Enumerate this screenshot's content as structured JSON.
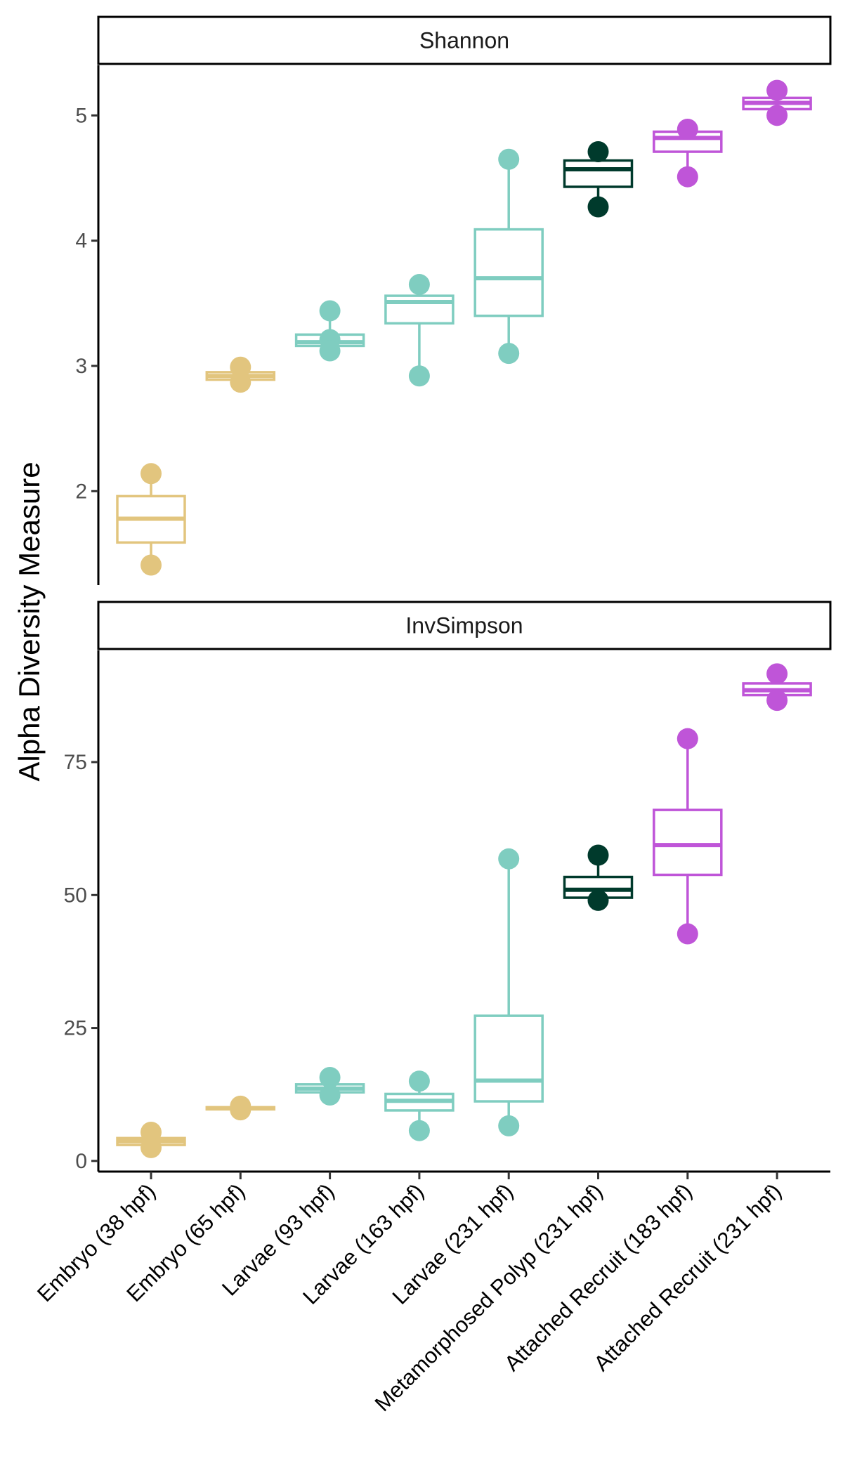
{
  "chart_data": {
    "type": "boxplot",
    "ylabel": "Alpha Diversity Measure",
    "xlabel": "",
    "categories": [
      "Embryo (38 hpf)",
      "Embryo (65 hpf)",
      "Larvae (93 hpf)",
      "Larvae (163 hpf)",
      "Larvae (231 hpf)",
      "Metamorphosed Polyp (231 hpf)",
      "Attached Recruit (183 hpf)",
      "Attached Recruit (231 hpf)"
    ],
    "category_colors": [
      "#E2C57E",
      "#E2C57E",
      "#7FCDC0",
      "#7FCDC0",
      "#7FCDC0",
      "#003A2C",
      "#BF55D8",
      "#BF55D8"
    ],
    "panels": [
      {
        "title": "Shannon",
        "ylim": [
          1.25,
          5.4
        ],
        "ticks": [
          2,
          3,
          4,
          5
        ],
        "tick_labels": [
          "2",
          "3",
          "4",
          "5"
        ],
        "boxes": [
          {
            "min": 1.41,
            "q1": 1.59,
            "median": 1.78,
            "q3": 1.96,
            "max": 2.14,
            "points": [
              2.14,
              1.41
            ]
          },
          {
            "min": 2.87,
            "q1": 2.89,
            "median": 2.92,
            "q3": 2.95,
            "max": 2.99,
            "points": [
              2.99,
              2.87
            ]
          },
          {
            "min": 3.12,
            "q1": 3.16,
            "median": 3.19,
            "q3": 3.25,
            "max": 3.44,
            "points": [
              3.44,
              3.21,
              3.12
            ]
          },
          {
            "min": 2.92,
            "q1": 3.34,
            "median": 3.51,
            "q3": 3.56,
            "max": 3.65,
            "points": [
              3.65,
              2.92
            ]
          },
          {
            "min": 3.1,
            "q1": 3.4,
            "median": 3.7,
            "q3": 4.09,
            "max": 4.65,
            "points": [
              4.65,
              3.1
            ]
          },
          {
            "min": 4.27,
            "q1": 4.43,
            "median": 4.57,
            "q3": 4.64,
            "max": 4.71,
            "points": [
              4.71,
              4.27
            ]
          },
          {
            "min": 4.51,
            "q1": 4.71,
            "median": 4.82,
            "q3": 4.87,
            "max": 4.89,
            "points": [
              4.89,
              4.51
            ]
          },
          {
            "min": 5.0,
            "q1": 5.05,
            "median": 5.1,
            "q3": 5.14,
            "max": 5.2,
            "points": [
              5.2,
              5.0
            ]
          }
        ]
      },
      {
        "title": "InvSimpson",
        "ylim": [
          -2,
          96
        ],
        "ticks": [
          0,
          25,
          50,
          75
        ],
        "tick_labels": [
          "0",
          "25",
          "50",
          "75"
        ],
        "boxes": [
          {
            "min": 2.5,
            "q1": 3.0,
            "median": 3.7,
            "q3": 4.3,
            "max": 5.4,
            "points": [
              5.4,
              2.5
            ]
          },
          {
            "min": 9.6,
            "q1": 9.7,
            "median": 9.9,
            "q3": 10.1,
            "max": 10.3,
            "points": [
              10.3,
              9.6
            ]
          },
          {
            "min": 12.4,
            "q1": 12.9,
            "median": 13.6,
            "q3": 14.4,
            "max": 15.7,
            "points": [
              15.7,
              12.4
            ]
          },
          {
            "min": 5.7,
            "q1": 9.5,
            "median": 11.3,
            "q3": 12.6,
            "max": 15.0,
            "points": [
              15.0,
              5.7
            ]
          },
          {
            "min": 6.6,
            "q1": 11.2,
            "median": 15.1,
            "q3": 27.3,
            "max": 56.8,
            "points": [
              56.8,
              6.6
            ]
          },
          {
            "min": 49.0,
            "q1": 49.5,
            "median": 51.0,
            "q3": 53.4,
            "max": 57.5,
            "points": [
              57.5,
              49.0
            ]
          },
          {
            "min": 42.7,
            "q1": 53.8,
            "median": 59.4,
            "q3": 66.0,
            "max": 79.4,
            "points": [
              79.4,
              42.7
            ]
          },
          {
            "min": 86.6,
            "q1": 87.6,
            "median": 88.5,
            "q3": 89.8,
            "max": 91.6,
            "points": [
              91.6,
              86.6
            ]
          }
        ]
      }
    ]
  }
}
